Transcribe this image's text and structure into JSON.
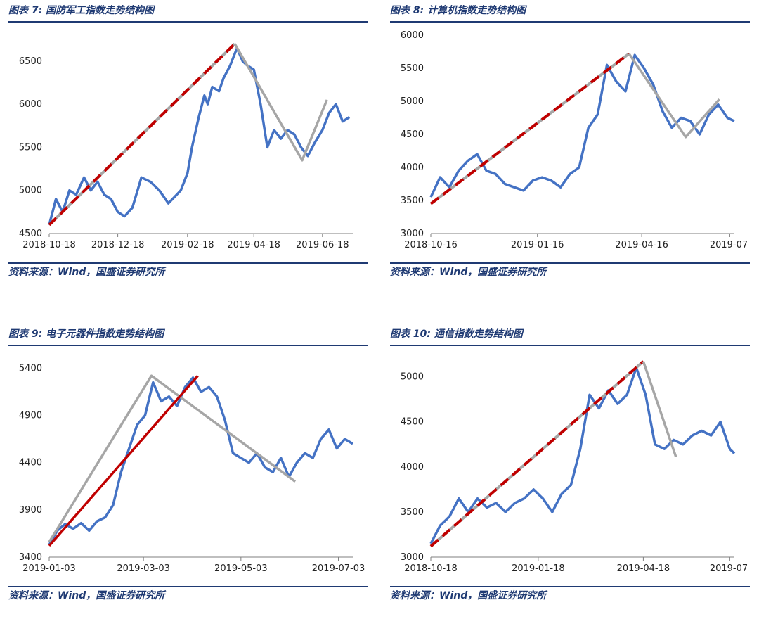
{
  "source_label": "资料来源：Wind，国盛证券研究所",
  "figures": [
    {
      "title": "图表 7:  国防军工指数走势结构图"
    },
    {
      "title": "图表 8:  计算机指数走势结构图"
    },
    {
      "title": "图表 9:  电子元器件指数走势结构图"
    },
    {
      "title": "图表 10:  通信指数走势结构图"
    }
  ],
  "colors": {
    "index_line": "#4472c4",
    "trend_dashed": "#c00000",
    "trend_gray": "#a6a6a6",
    "trend_red": "#c00000"
  },
  "chart_data": [
    {
      "type": "line",
      "title": "图表 7:  国防军工指数走势结构图",
      "xlabel": "",
      "ylabel": "",
      "x_start": "2018-10-18",
      "x_end": "2019-07-15",
      "x_ticks": [
        "2018-10-18",
        "2018-12-18",
        "2019-02-18",
        "2019-04-18",
        "2019-06-18"
      ],
      "y_ticks": [
        4500,
        5000,
        5500,
        6000,
        6500
      ],
      "ylim": [
        4500,
        6800
      ],
      "series": [
        {
          "role": "index",
          "x": [
            "2018-10-18",
            "2018-10-24",
            "2018-10-30",
            "2018-11-05",
            "2018-11-11",
            "2018-11-18",
            "2018-11-24",
            "2018-11-30",
            "2018-12-06",
            "2018-12-12",
            "2018-12-18",
            "2018-12-24",
            "2018-12-31",
            "2019-01-08",
            "2019-01-16",
            "2019-01-24",
            "2019-02-01",
            "2019-02-12",
            "2019-02-18",
            "2019-02-22",
            "2019-02-28",
            "2019-03-05",
            "2019-03-08",
            "2019-03-12",
            "2019-03-18",
            "2019-03-22",
            "2019-03-28",
            "2019-04-03",
            "2019-04-08",
            "2019-04-12",
            "2019-04-18",
            "2019-04-24",
            "2019-04-30",
            "2019-05-06",
            "2019-05-12",
            "2019-05-18",
            "2019-05-24",
            "2019-05-30",
            "2019-06-05",
            "2019-06-11",
            "2019-06-18",
            "2019-06-24",
            "2019-06-30",
            "2019-07-06",
            "2019-07-12"
          ],
          "y": [
            4600,
            4900,
            4750,
            5000,
            4950,
            5150,
            5000,
            5100,
            4950,
            4900,
            4750,
            4700,
            4800,
            5150,
            5100,
            5000,
            4850,
            5000,
            5200,
            5500,
            5850,
            6100,
            6000,
            6200,
            6150,
            6300,
            6450,
            6650,
            6500,
            6450,
            6400,
            6000,
            5500,
            5700,
            5600,
            5700,
            5650,
            5500,
            5400,
            5550,
            5700,
            5900,
            6000,
            5800,
            5850
          ]
        },
        {
          "role": "trend",
          "style": "dashed-red",
          "x": [
            "2018-10-18",
            "2019-04-01"
          ],
          "y": [
            4600,
            6700
          ]
        },
        {
          "role": "trend",
          "style": "gray",
          "x": [
            "2019-04-01",
            "2019-05-31",
            "2019-06-22"
          ],
          "y": [
            6700,
            5350,
            6050
          ]
        }
      ]
    },
    {
      "type": "line",
      "title": "图表 8:  计算机指数走势结构图",
      "xlabel": "",
      "ylabel": "",
      "x_start": "2018-10-16",
      "x_end": "2019-07-05",
      "x_ticks": [
        "2018-10-16",
        "2019-01-16",
        "2019-04-16",
        "2019-07"
      ],
      "y_ticks": [
        3000,
        3500,
        4000,
        4500,
        5000,
        5500,
        6000
      ],
      "ylim": [
        3000,
        6000
      ],
      "series": [
        {
          "role": "index",
          "x": [
            "2018-10-16",
            "2018-10-24",
            "2018-11-01",
            "2018-11-09",
            "2018-11-17",
            "2018-11-25",
            "2018-12-03",
            "2018-12-11",
            "2018-12-19",
            "2018-12-27",
            "2019-01-04",
            "2019-01-12",
            "2019-01-20",
            "2019-01-28",
            "2019-02-05",
            "2019-02-13",
            "2019-02-21",
            "2019-03-01",
            "2019-03-09",
            "2019-03-17",
            "2019-03-25",
            "2019-04-02",
            "2019-04-10",
            "2019-04-18",
            "2019-04-26",
            "2019-05-04",
            "2019-05-12",
            "2019-05-20",
            "2019-05-28",
            "2019-06-05",
            "2019-06-13",
            "2019-06-21",
            "2019-06-29",
            "2019-07-05"
          ],
          "y": [
            3550,
            3850,
            3700,
            3950,
            4100,
            4200,
            3950,
            3900,
            3750,
            3700,
            3650,
            3800,
            3850,
            3800,
            3700,
            3900,
            4000,
            4600,
            4800,
            5550,
            5300,
            5150,
            5700,
            5500,
            5250,
            4850,
            4600,
            4750,
            4700,
            4500,
            4800,
            4950,
            4750,
            4700
          ]
        },
        {
          "role": "trend",
          "style": "dashed-red",
          "x": [
            "2018-10-16",
            "2019-04-05"
          ],
          "y": [
            3450,
            5720
          ]
        },
        {
          "role": "trend",
          "style": "gray",
          "x": [
            "2019-04-05",
            "2019-05-24",
            "2019-06-22"
          ],
          "y": [
            5720,
            4460,
            5030
          ]
        }
      ]
    },
    {
      "type": "line",
      "title": "图表 9:  电子元器件指数走势结构图",
      "xlabel": "",
      "ylabel": "",
      "x_start": "2019-01-03",
      "x_end": "2019-07-12",
      "x_ticks": [
        "2019-01-03",
        "2019-03-03",
        "2019-05-03",
        "2019-07-03"
      ],
      "y_ticks": [
        3400,
        3900,
        4400,
        4900,
        5400
      ],
      "ylim": [
        3400,
        5500
      ],
      "series": [
        {
          "role": "index",
          "x": [
            "2019-01-03",
            "2019-01-08",
            "2019-01-13",
            "2019-01-18",
            "2019-01-23",
            "2019-01-28",
            "2019-02-02",
            "2019-02-07",
            "2019-02-12",
            "2019-02-17",
            "2019-02-22",
            "2019-02-27",
            "2019-03-04",
            "2019-03-09",
            "2019-03-14",
            "2019-03-19",
            "2019-03-24",
            "2019-03-29",
            "2019-04-03",
            "2019-04-08",
            "2019-04-13",
            "2019-04-18",
            "2019-04-23",
            "2019-04-28",
            "2019-05-03",
            "2019-05-08",
            "2019-05-13",
            "2019-05-18",
            "2019-05-23",
            "2019-05-28",
            "2019-06-02",
            "2019-06-07",
            "2019-06-12",
            "2019-06-17",
            "2019-06-22",
            "2019-06-27",
            "2019-07-02",
            "2019-07-07",
            "2019-07-12"
          ],
          "y": [
            3530,
            3680,
            3750,
            3700,
            3760,
            3680,
            3780,
            3820,
            3950,
            4300,
            4550,
            4800,
            4900,
            5250,
            5050,
            5100,
            5000,
            5200,
            5300,
            5150,
            5200,
            5100,
            4850,
            4500,
            4450,
            4400,
            4500,
            4350,
            4300,
            4450,
            4250,
            4400,
            4500,
            4450,
            4650,
            4750,
            4550,
            4650,
            4600
          ]
        },
        {
          "role": "trend",
          "style": "gray",
          "x": [
            "2019-01-03",
            "2019-03-08",
            "2019-06-06"
          ],
          "y": [
            3560,
            5320,
            4200
          ]
        },
        {
          "role": "trend",
          "style": "red",
          "x": [
            "2019-01-03",
            "2019-04-06"
          ],
          "y": [
            3520,
            5320
          ]
        }
      ]
    },
    {
      "type": "line",
      "title": "图表 10:  通信指数走势结构图",
      "xlabel": "",
      "ylabel": "",
      "x_start": "2018-10-18",
      "x_end": "2019-07-05",
      "x_ticks": [
        "2018-10-18",
        "2019-01-18",
        "2019-04-18",
        "2019-07"
      ],
      "y_ticks": [
        3000,
        3500,
        4000,
        4500,
        5000
      ],
      "ylim": [
        3000,
        5200
      ],
      "series": [
        {
          "role": "index",
          "x": [
            "2018-10-18",
            "2018-10-26",
            "2018-11-03",
            "2018-11-11",
            "2018-11-19",
            "2018-11-27",
            "2018-12-05",
            "2018-12-13",
            "2018-12-21",
            "2018-12-29",
            "2019-01-06",
            "2019-01-14",
            "2019-01-22",
            "2019-01-30",
            "2019-02-07",
            "2019-02-15",
            "2019-02-23",
            "2019-03-03",
            "2019-03-11",
            "2019-03-19",
            "2019-03-27",
            "2019-04-04",
            "2019-04-12",
            "2019-04-20",
            "2019-04-28",
            "2019-05-06",
            "2019-05-14",
            "2019-05-22",
            "2019-05-30",
            "2019-06-07",
            "2019-06-15",
            "2019-06-23",
            "2019-07-01",
            "2019-07-05"
          ],
          "y": [
            3150,
            3350,
            3450,
            3650,
            3500,
            3650,
            3550,
            3600,
            3500,
            3600,
            3650,
            3750,
            3650,
            3500,
            3700,
            3800,
            4200,
            4800,
            4650,
            4850,
            4700,
            4800,
            5100,
            4800,
            4250,
            4200,
            4300,
            4250,
            4350,
            4400,
            4350,
            4500,
            4200,
            4150
          ]
        },
        {
          "role": "trend",
          "style": "dashed-red",
          "x": [
            "2018-10-18",
            "2019-04-18"
          ],
          "y": [
            3120,
            5170
          ]
        },
        {
          "role": "trend",
          "style": "gray",
          "x": [
            "2019-04-18",
            "2019-05-16"
          ],
          "y": [
            5170,
            4110
          ]
        }
      ]
    }
  ]
}
